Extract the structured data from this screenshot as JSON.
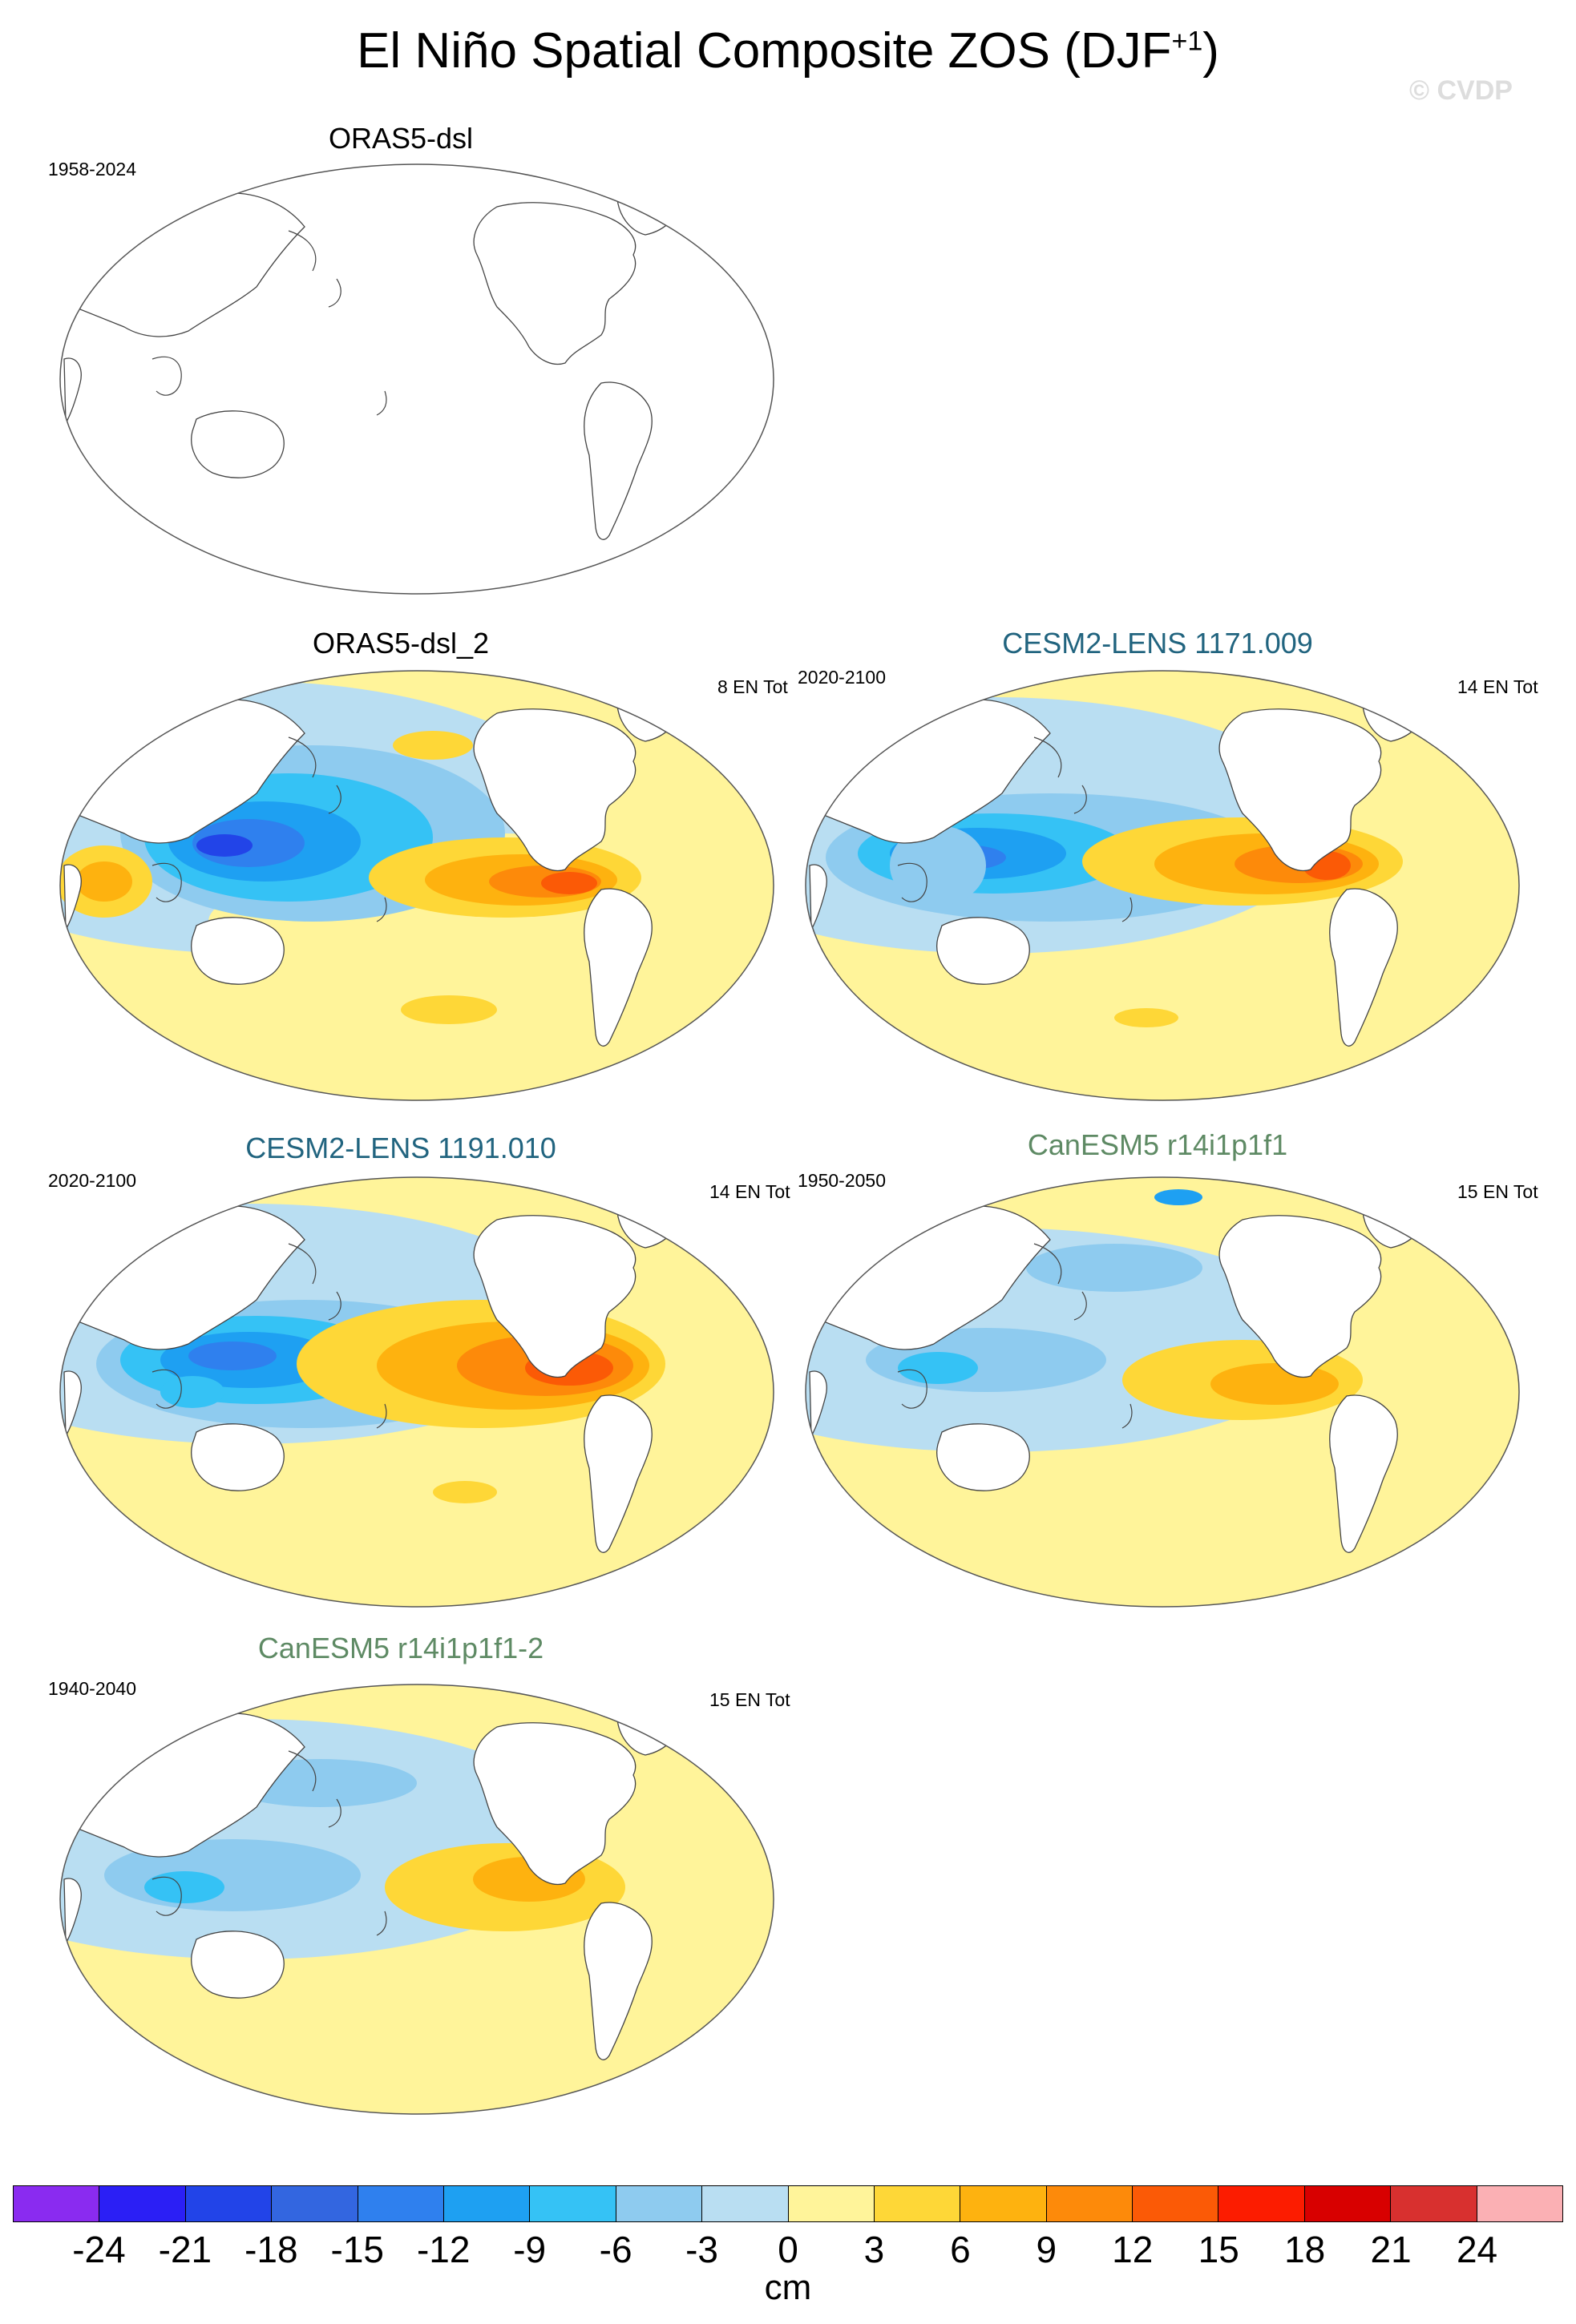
{
  "title": {
    "main": "El Niño Spatial Composite ZOS (DJF",
    "superscript": "+1",
    "close": ")"
  },
  "watermark": "© CVDP",
  "panels": [
    {
      "title": "ORAS5-dsl",
      "period": "1958-2024",
      "count": "",
      "title_color": "obs",
      "filled": false
    },
    {
      "title": "ORAS5-dsl_2",
      "period": "",
      "count": "8 EN Tot",
      "title_color": "obs",
      "filled": true,
      "pattern": "obs"
    },
    {
      "title": "CESM2-LENS 1171.009",
      "period": "2020-2100",
      "count": "14 EN Tot",
      "title_color": "cesm",
      "filled": true,
      "pattern": "cesm1"
    },
    {
      "title": "CESM2-LENS 1191.010",
      "period": "2020-2100",
      "count": "14 EN Tot",
      "title_color": "cesm",
      "filled": true,
      "pattern": "cesm2"
    },
    {
      "title": "CanESM5 r14i1p1f1",
      "period": "1950-2050",
      "count": "15 EN Tot",
      "title_color": "can",
      "filled": true,
      "pattern": "can1"
    },
    {
      "title": "CanESM5 r14i1p1f1-2",
      "period": "1940-2040",
      "count": "15 EN Tot",
      "title_color": "can",
      "filled": true,
      "pattern": "can2"
    }
  ],
  "colorbar": {
    "colors": [
      "#8a2bf0",
      "#2b1ff5",
      "#2244e8",
      "#3366e0",
      "#2f80ee",
      "#1ea0f2",
      "#35c2f5",
      "#8ecbef",
      "#b9def2",
      "#fff49a",
      "#fed737",
      "#feb20f",
      "#fd8a0a",
      "#fb5a06",
      "#fc1c00",
      "#d80000",
      "#d8302f",
      "#fbb0b4"
    ],
    "ticks": [
      "-24",
      "-21",
      "-18",
      "-15",
      "-12",
      "-9",
      "-6",
      "-3",
      "0",
      "3",
      "6",
      "9",
      "12",
      "15",
      "18",
      "21",
      "24"
    ],
    "units": "cm"
  }
}
